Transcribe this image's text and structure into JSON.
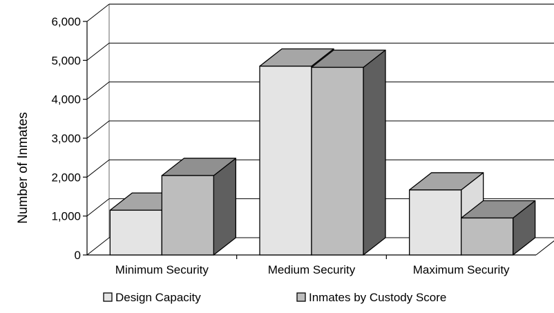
{
  "chart_data": {
    "type": "bar",
    "ylabel": "Number of Inmates",
    "xlabel": "",
    "ylim": [
      0,
      6000
    ],
    "yticks": [
      0,
      1000,
      2000,
      3000,
      4000,
      5000,
      6000
    ],
    "ytick_labels": [
      "0",
      "1,000",
      "2,000",
      "3,000",
      "4,000",
      "5,000",
      "6,000"
    ],
    "categories": [
      "Minimum Security",
      "Medium Security",
      "Maximum Security"
    ],
    "series": [
      {
        "name": "Design Capacity",
        "values": [
          1150,
          4850,
          1670
        ],
        "color": "#e4e4e4",
        "side_color": "#dcdcdc",
        "top_color": "#a6a6a6"
      },
      {
        "name": "Inmates by Custody Score",
        "values": [
          2040,
          4820,
          950
        ],
        "color": "#bdbdbd",
        "side_color": "#5f5f5f",
        "top_color": "#909090"
      }
    ],
    "grid": true,
    "legend_position": "bottom",
    "style": "3d"
  }
}
